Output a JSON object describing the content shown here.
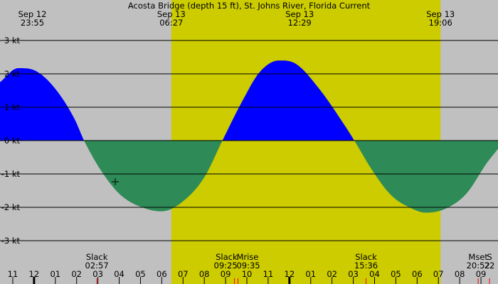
{
  "chart_data": {
    "type": "area",
    "title": "Acosta Bridge (depth 15 ft), St. Johns River, Florida Current",
    "unit": "kt",
    "x_unit": "hour",
    "xlim": [
      22.4,
      45.8
    ],
    "ylim": [
      -3.4,
      3.4
    ],
    "y_ticks": [
      {
        "value": 3,
        "label": "3 kt"
      },
      {
        "value": 2,
        "label": "2 kt"
      },
      {
        "value": 1,
        "label": "1 kt"
      },
      {
        "value": 0,
        "label": "0 kt"
      },
      {
        "value": -1,
        "label": "-1 kt"
      },
      {
        "value": -2,
        "label": "-2 kt"
      },
      {
        "value": -3,
        "label": "-3 kt"
      }
    ],
    "x_ticks": [
      {
        "hour": 23,
        "label": "11"
      },
      {
        "hour": 24,
        "label": "12"
      },
      {
        "hour": 25,
        "label": "01"
      },
      {
        "hour": 26,
        "label": "02"
      },
      {
        "hour": 27,
        "label": "03"
      },
      {
        "hour": 28,
        "label": "04"
      },
      {
        "hour": 29,
        "label": "05"
      },
      {
        "hour": 30,
        "label": "06"
      },
      {
        "hour": 31,
        "label": "07"
      },
      {
        "hour": 32,
        "label": "08"
      },
      {
        "hour": 33,
        "label": "09"
      },
      {
        "hour": 34,
        "label": "10"
      },
      {
        "hour": 35,
        "label": "11"
      },
      {
        "hour": 36,
        "label": "12"
      },
      {
        "hour": 37,
        "label": "01"
      },
      {
        "hour": 38,
        "label": "02"
      },
      {
        "hour": 39,
        "label": "03"
      },
      {
        "hour": 40,
        "label": "04"
      },
      {
        "hour": 41,
        "label": "05"
      },
      {
        "hour": 42,
        "label": "06"
      },
      {
        "hour": 43,
        "label": "07"
      },
      {
        "hour": 44,
        "label": "08"
      },
      {
        "hour": 45,
        "label": "09"
      }
    ],
    "daylight": {
      "start": 30.45,
      "end": 43.1
    },
    "events_top": [
      {
        "hour": 23.92,
        "date": "Sep 12",
        "time": "23:55"
      },
      {
        "hour": 30.45,
        "date": "Sep 13",
        "time": "06:27"
      },
      {
        "hour": 36.48,
        "date": "Sep 13",
        "time": "12:29"
      },
      {
        "hour": 43.1,
        "date": "Sep 13",
        "time": "19:06"
      }
    ],
    "events_bottom": [
      {
        "hour": 26.95,
        "name": "Slack",
        "time": "02:57"
      },
      {
        "hour": 33.42,
        "name": "Slack",
        "time": "09:25"
      },
      {
        "hour": 33.58,
        "name": "Mrise",
        "time": "09:35"
      },
      {
        "hour": 39.6,
        "name": "Slack",
        "time": "15:36"
      },
      {
        "hour": 44.87,
        "name": "Mset",
        "time": "20:52"
      },
      {
        "hour": 45.4,
        "name": "S",
        "time": "22"
      }
    ],
    "series": [
      {
        "values": [
          {
            "x": 22.4,
            "y": 1.75
          },
          {
            "x": 23.25,
            "y": 2.17
          },
          {
            "x": 24.1,
            "y": 2.08
          },
          {
            "x": 25.0,
            "y": 1.55
          },
          {
            "x": 25.9,
            "y": 0.65
          },
          {
            "x": 26.35,
            "y": 0.0
          },
          {
            "x": 27.2,
            "y": -0.95
          },
          {
            "x": 28.1,
            "y": -1.65
          },
          {
            "x": 29.3,
            "y": -2.05
          },
          {
            "x": 30.0,
            "y": -2.12
          },
          {
            "x": 31.0,
            "y": -1.82
          },
          {
            "x": 32.0,
            "y": -1.1
          },
          {
            "x": 32.85,
            "y": 0.0
          },
          {
            "x": 33.8,
            "y": 1.2
          },
          {
            "x": 34.6,
            "y": 2.05
          },
          {
            "x": 35.5,
            "y": 2.4
          },
          {
            "x": 36.3,
            "y": 2.3
          },
          {
            "x": 37.4,
            "y": 1.55
          },
          {
            "x": 38.6,
            "y": 0.45
          },
          {
            "x": 39.05,
            "y": 0.0
          },
          {
            "x": 39.9,
            "y": -0.9
          },
          {
            "x": 40.8,
            "y": -1.65
          },
          {
            "x": 41.8,
            "y": -2.05
          },
          {
            "x": 42.4,
            "y": -2.16
          },
          {
            "x": 43.3,
            "y": -2.05
          },
          {
            "x": 44.3,
            "y": -1.6
          },
          {
            "x": 45.3,
            "y": -0.65
          },
          {
            "x": 45.8,
            "y": -0.25
          }
        ]
      }
    ]
  },
  "colors": {
    "night": "#c0c0c0",
    "day": "#cccc00",
    "flood": "#0000ff",
    "ebb": "#2e8b57",
    "grid": "#000000",
    "event_tick": "#ff0000"
  }
}
